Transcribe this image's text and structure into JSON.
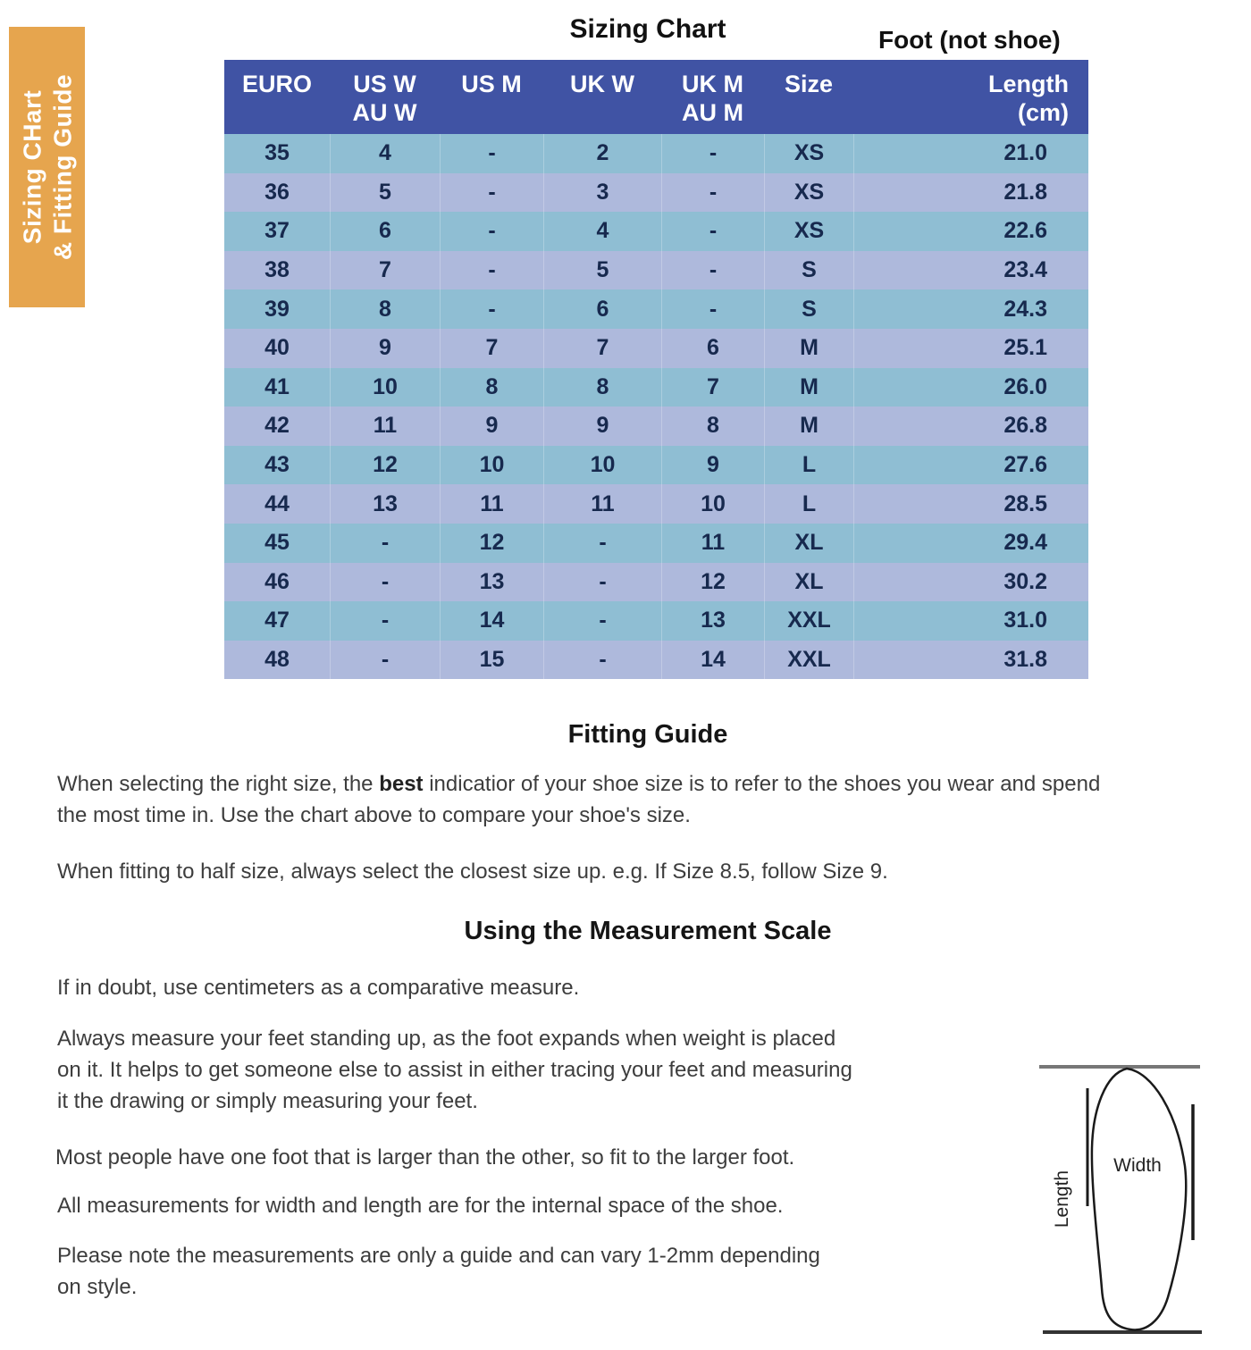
{
  "banner": {
    "line1": "Sizing CHart",
    "line2": "& Fitting Guide"
  },
  "titles": {
    "chart_title": "Sizing Chart",
    "foot_note": "Foot (not shoe)"
  },
  "table": {
    "headers": [
      {
        "line1": "EURO",
        "line2": ""
      },
      {
        "line1": "US W",
        "line2": "AU W"
      },
      {
        "line1": "US M",
        "line2": ""
      },
      {
        "line1": "UK W",
        "line2": ""
      },
      {
        "line1": "UK M",
        "line2": "AU M"
      },
      {
        "line1": "Size",
        "line2": ""
      },
      {
        "line1": "Length",
        "line2": "(cm)"
      }
    ],
    "rows": [
      [
        "35",
        "4",
        "-",
        "2",
        "-",
        "XS",
        "21.0"
      ],
      [
        "36",
        "5",
        "-",
        "3",
        "-",
        "XS",
        "21.8"
      ],
      [
        "37",
        "6",
        "-",
        "4",
        "-",
        "XS",
        "22.6"
      ],
      [
        "38",
        "7",
        "-",
        "5",
        "-",
        "S",
        "23.4"
      ],
      [
        "39",
        "8",
        "-",
        "6",
        "-",
        "S",
        "24.3"
      ],
      [
        "40",
        "9",
        "7",
        "7",
        "6",
        "M",
        "25.1"
      ],
      [
        "41",
        "10",
        "8",
        "8",
        "7",
        "M",
        "26.0"
      ],
      [
        "42",
        "11",
        "9",
        "9",
        "8",
        "M",
        "26.8"
      ],
      [
        "43",
        "12",
        "10",
        "10",
        "9",
        "L",
        "27.6"
      ],
      [
        "44",
        "13",
        "11",
        "11",
        "10",
        "L",
        "28.5"
      ],
      [
        "45",
        "-",
        "12",
        "-",
        "11",
        "XL",
        "29.4"
      ],
      [
        "46",
        "-",
        "13",
        "-",
        "12",
        "XL",
        "30.2"
      ],
      [
        "47",
        "-",
        "14",
        "-",
        "13",
        "XXL",
        "31.0"
      ],
      [
        "48",
        "-",
        "15",
        "-",
        "14",
        "XXL",
        "31.8"
      ]
    ]
  },
  "fitting_guide": {
    "heading": "Fitting Guide",
    "para1_before": "When selecting the right size, the ",
    "para1_bold": "best",
    "para1_after": " indicatior of your shoe size is to refer to the shoes you wear and spend\nthe most time in. Use the chart above to compare your shoe's size.",
    "para2": "When fitting to half size, always select the closest size up. e.g. If Size 8.5, follow Size 9."
  },
  "measurement_guide": {
    "heading": "Using the Measurement Scale",
    "para1": "If in doubt, use centimeters as a comparative measure.",
    "para2": "Always measure your feet standing up, as the foot expands when weight is placed\non it. It helps to get someone else to assist in either tracing your feet and measuring\nit the drawing or simply measuring your feet.",
    "para3": "Most people have one foot that is larger than the other, so fit to the larger foot.",
    "para4": "All measurements for width and length are for the internal space of the shoe.",
    "para5": "Please note the measurements are only a guide and can vary 1-2mm depending\non style."
  },
  "diagram": {
    "width_label": "Width",
    "length_label": "Length"
  },
  "colors": {
    "banner_bg": "#E6A54E",
    "header_bg": "#4053A4",
    "row_teal": "#8FBED3",
    "row_periwinkle": "#AEB9DC",
    "cell_text": "#17294E"
  }
}
